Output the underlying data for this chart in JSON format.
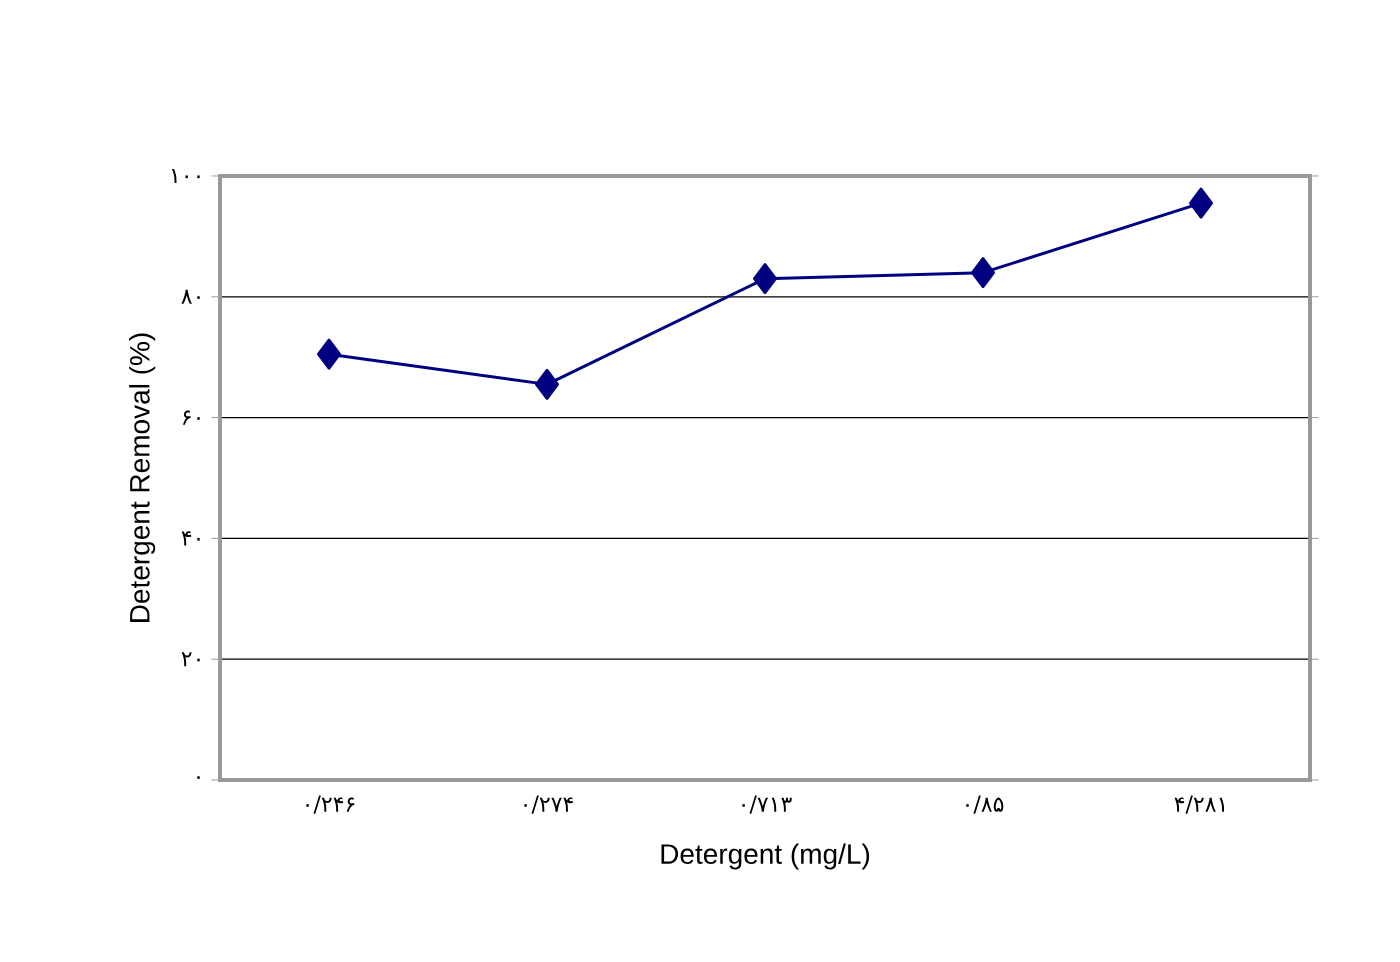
{
  "chart_data": {
    "type": "line",
    "xlabel": "Detergent (mg/L)",
    "ylabel": "Detergent Removal (%)",
    "categories": [
      "۰/۲۴۶",
      "۰/۲۷۴",
      "۰/۷۱۳",
      "۰/۸۵",
      "۴/۲۸۱"
    ],
    "values": [
      70.5,
      65.5,
      83,
      84,
      95.5
    ],
    "color": "#000080",
    "marker": "diamond",
    "line_style": "solid",
    "grid": "y",
    "ylim": [
      0,
      100
    ],
    "yticks": [
      {
        "value": 0,
        "label": "۰"
      },
      {
        "value": 20,
        "label": "۲۰"
      },
      {
        "value": 40,
        "label": "۴۰"
      },
      {
        "value": 60,
        "label": "۶۰"
      },
      {
        "value": 80,
        "label": "۸۰"
      },
      {
        "value": 100,
        "label": "۱۰۰"
      }
    ]
  }
}
